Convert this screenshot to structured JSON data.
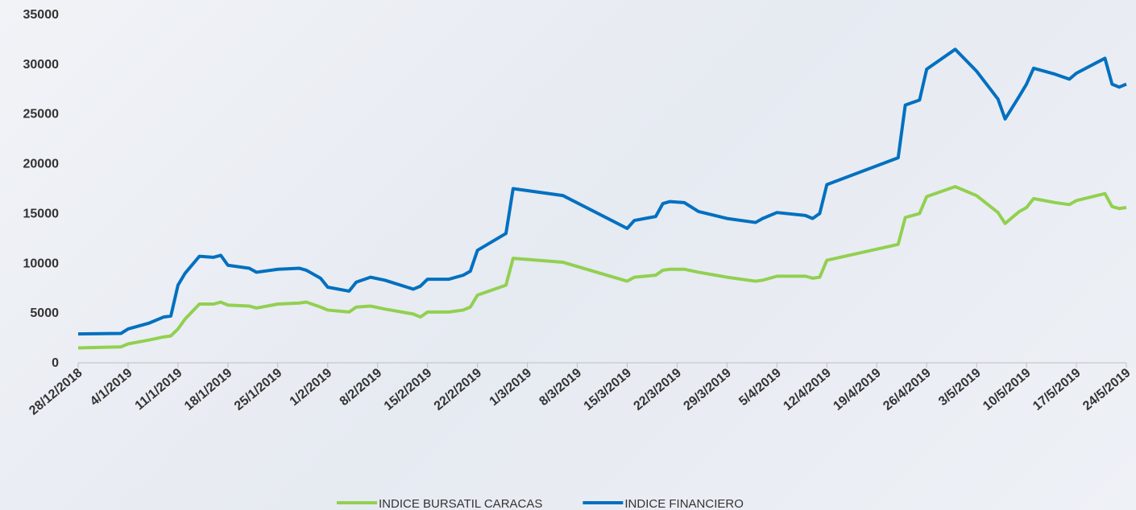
{
  "chart_data": {
    "type": "line",
    "x": [
      "28/12/2018",
      "3/1/2019",
      "4/1/2019",
      "7/1/2019",
      "9/1/2019",
      "10/1/2019",
      "11/1/2019",
      "12/1/2019",
      "14/1/2019",
      "16/1/2019",
      "17/1/2019",
      "18/1/2019",
      "21/1/2019",
      "22/1/2019",
      "25/1/2019",
      "28/1/2019",
      "29/1/2019",
      "31/1/2019",
      "1/2/2019",
      "4/2/2019",
      "5/2/2019",
      "7/2/2019",
      "9/2/2019",
      "13/2/2019",
      "14/2/2019",
      "15/2/2019",
      "18/2/2019",
      "20/2/2019",
      "21/2/2019",
      "22/2/2019",
      "26/2/2019",
      "27/2/2019",
      "6/3/2019",
      "15/3/2019",
      "16/3/2019",
      "19/3/2019",
      "20/3/2019",
      "21/3/2019",
      "23/3/2019",
      "25/3/2019",
      "29/3/2019",
      "2/4/2019",
      "3/4/2019",
      "5/4/2019",
      "9/4/2019",
      "10/4/2019",
      "11/4/2019",
      "12/4/2019",
      "22/4/2019",
      "23/4/2019",
      "25/4/2019",
      "26/4/2019",
      "30/4/2019",
      "3/5/2019",
      "6/5/2019",
      "7/5/2019",
      "9/5/2019",
      "10/5/2019",
      "11/5/2019",
      "14/5/2019",
      "16/5/2019",
      "17/5/2019",
      "21/5/2019",
      "22/5/2019",
      "23/5/2019",
      "24/5/2019"
    ],
    "series": [
      {
        "name": "INDICE BURSATIL CARACAS",
        "color": "#92d050",
        "values": [
          1500,
          1600,
          1900,
          2300,
          2600,
          2700,
          3400,
          4400,
          5900,
          5900,
          6100,
          5800,
          5700,
          5500,
          5900,
          6000,
          6100,
          5600,
          5300,
          5100,
          5600,
          5700,
          5400,
          4900,
          4600,
          5100,
          5100,
          5300,
          5600,
          6800,
          7800,
          10500,
          10100,
          8200,
          8600,
          8800,
          9300,
          9400,
          9400,
          9100,
          8600,
          8200,
          8300,
          8700,
          8700,
          8500,
          8600,
          10300,
          11900,
          14600,
          15000,
          16700,
          17700,
          16800,
          15100,
          14000,
          15200,
          15600,
          16500,
          16100,
          15900,
          16300,
          17000,
          15700,
          15500,
          15600
        ]
      },
      {
        "name": "INDICE FINANCIERO",
        "color": "#0070c0",
        "values": [
          2900,
          2950,
          3400,
          4000,
          4600,
          4700,
          7800,
          9000,
          10700,
          10600,
          10800,
          9800,
          9500,
          9100,
          9400,
          9500,
          9300,
          8500,
          7600,
          7200,
          8100,
          8600,
          8300,
          7400,
          7700,
          8400,
          8400,
          8800,
          9200,
          11300,
          13000,
          17500,
          16800,
          13500,
          14300,
          14700,
          16000,
          16200,
          16100,
          15200,
          14500,
          14100,
          14500,
          15100,
          14800,
          14500,
          15000,
          17900,
          20600,
          25900,
          26400,
          29500,
          31500,
          29300,
          26500,
          24500,
          26800,
          28000,
          29600,
          29000,
          28500,
          29100,
          30600,
          28000,
          27700,
          28000
        ]
      }
    ],
    "xlim": [
      "28/12/2018",
      "24/5/2019"
    ],
    "xticks": [
      "28/12/2018",
      "4/1/2019",
      "11/1/2019",
      "18/1/2019",
      "25/1/2019",
      "1/2/2019",
      "8/2/2019",
      "15/2/2019",
      "22/2/2019",
      "1/3/2019",
      "8/3/2019",
      "15/3/2019",
      "22/3/2019",
      "29/3/2019",
      "5/4/2019",
      "12/4/2019",
      "19/4/2019",
      "26/4/2019",
      "3/5/2019",
      "10/5/2019",
      "17/5/2019",
      "24/5/2019"
    ],
    "ylim": [
      0,
      35000
    ],
    "yticks": [
      0,
      5000,
      10000,
      15000,
      20000,
      25000,
      30000,
      35000
    ],
    "legend": "bottom"
  }
}
